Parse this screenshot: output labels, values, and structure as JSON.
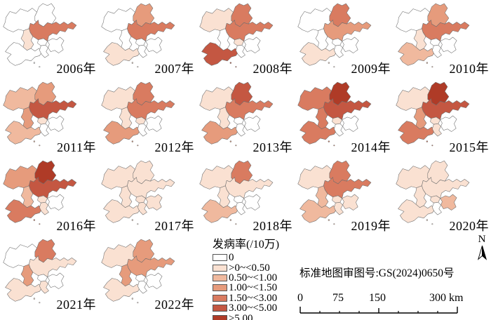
{
  "figure": {
    "legend": {
      "title": "发病率(/10万)",
      "classes": [
        {
          "label": "0",
          "color": "#FFFFFF"
        },
        {
          "label": ">0~<0.50",
          "color": "#FAE1D2"
        },
        {
          "label": "0.50~<1.00",
          "color": "#F0B99E"
        },
        {
          "label": "1.00~<1.50",
          "color": "#E69B7C"
        },
        {
          "label": "1.50~<3.00",
          "color": "#D97B60"
        },
        {
          "label": "3.00~<5.00",
          "color": "#C45742"
        },
        {
          "label": "≥5.00",
          "color": "#AF3B27"
        }
      ]
    },
    "map_note": "标准地图审图号:GS(2024)0650号",
    "north_arrow_label": "N",
    "scale_bar": {
      "tick_labels": [
        "0",
        "75",
        "150"
      ],
      "end_label": "300 km"
    },
    "border_color": "#6e6e6e",
    "districts": [
      "pingdu",
      "laixi",
      "jimo",
      "jiaozhou",
      "huangdao",
      "chengyang",
      "laoshan",
      "urban"
    ],
    "years": [
      {
        "label": "2006年",
        "classes": {
          "pingdu": 0,
          "laixi": 0,
          "jimo": 4,
          "jiaozhou": 1,
          "huangdao": 0,
          "chengyang": 0,
          "laoshan": 0,
          "urban": 0
        }
      },
      {
        "label": "2007年",
        "classes": {
          "pingdu": 0,
          "laixi": 3,
          "jimo": 4,
          "jiaozhou": 0,
          "huangdao": 1,
          "chengyang": 0,
          "laoshan": 0,
          "urban": 0
        }
      },
      {
        "label": "2008年",
        "classes": {
          "pingdu": 1,
          "laixi": 4,
          "jimo": 4,
          "jiaozhou": 0,
          "huangdao": 5,
          "chengyang": 1,
          "laoshan": 0,
          "urban": 0
        }
      },
      {
        "label": "2009年",
        "classes": {
          "pingdu": 0,
          "laixi": 4,
          "jimo": 3,
          "jiaozhou": 0,
          "huangdao": 1,
          "chengyang": 0,
          "laoshan": 0,
          "urban": 0
        }
      },
      {
        "label": "2010年",
        "classes": {
          "pingdu": 0,
          "laixi": 3,
          "jimo": 4,
          "jiaozhou": 1,
          "huangdao": 2,
          "chengyang": 0,
          "laoshan": 0,
          "urban": 0
        }
      },
      {
        "label": "2011年",
        "classes": {
          "pingdu": 2,
          "laixi": 3,
          "jimo": 5,
          "jiaozhou": 3,
          "huangdao": 2,
          "chengyang": 1,
          "laoshan": 0,
          "urban": 0
        }
      },
      {
        "label": "2012年",
        "classes": {
          "pingdu": 1,
          "laixi": 4,
          "jimo": 4,
          "jiaozhou": 1,
          "huangdao": 3,
          "chengyang": 1,
          "laoshan": 0,
          "urban": 0
        }
      },
      {
        "label": "2013年",
        "classes": {
          "pingdu": 1,
          "laixi": 5,
          "jimo": 4,
          "jiaozhou": 1,
          "huangdao": 3,
          "chengyang": 0,
          "laoshan": 0,
          "urban": 0
        }
      },
      {
        "label": "2014年",
        "classes": {
          "pingdu": 4,
          "laixi": 6,
          "jimo": 5,
          "jiaozhou": 4,
          "huangdao": 4,
          "chengyang": 1,
          "laoshan": 0,
          "urban": 0
        }
      },
      {
        "label": "2015年",
        "classes": {
          "pingdu": 1,
          "laixi": 6,
          "jimo": 5,
          "jiaozhou": 3,
          "huangdao": 4,
          "chengyang": 1,
          "laoshan": 0,
          "urban": 1
        }
      },
      {
        "label": "2016年",
        "classes": {
          "pingdu": 3,
          "laixi": 6,
          "jimo": 5,
          "jiaozhou": 2,
          "huangdao": 4,
          "chengyang": 1,
          "laoshan": 0,
          "urban": 1
        }
      },
      {
        "label": "2017年",
        "classes": {
          "pingdu": 1,
          "laixi": 1,
          "jimo": 1,
          "jiaozhou": 1,
          "huangdao": 1,
          "chengyang": 1,
          "laoshan": 1,
          "urban": 1
        }
      },
      {
        "label": "2018年",
        "classes": {
          "pingdu": 1,
          "laixi": 4,
          "jimo": 1,
          "jiaozhou": 1,
          "huangdao": 2,
          "chengyang": 0,
          "laoshan": 0,
          "urban": 0
        }
      },
      {
        "label": "2019年",
        "classes": {
          "pingdu": 1,
          "laixi": 4,
          "jimo": 4,
          "jiaozhou": 2,
          "huangdao": 2,
          "chengyang": 1,
          "laoshan": 1,
          "urban": 1
        }
      },
      {
        "label": "2020年",
        "classes": {
          "pingdu": 1,
          "laixi": 1,
          "jimo": 1,
          "jiaozhou": 1,
          "huangdao": 1,
          "chengyang": 1,
          "laoshan": 2,
          "urban": 0
        }
      },
      {
        "label": "2021年",
        "classes": {
          "pingdu": 0,
          "laixi": 4,
          "jimo": 1,
          "jiaozhou": 3,
          "huangdao": 1,
          "chengyang": 0,
          "laoshan": 0,
          "urban": 1
        }
      },
      {
        "label": "2022年",
        "classes": {
          "pingdu": 1,
          "laixi": 3,
          "jimo": 3,
          "jiaozhou": 3,
          "huangdao": 1,
          "chengyang": 0,
          "laoshan": 0,
          "urban": 0
        }
      }
    ]
  }
}
